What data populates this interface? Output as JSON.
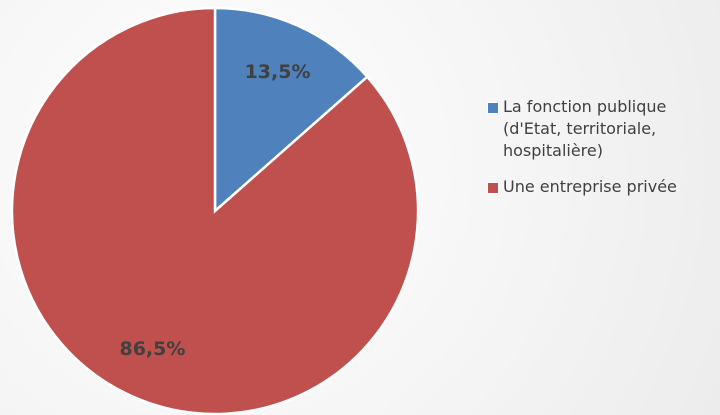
{
  "chart_data": {
    "type": "pie",
    "categories": [
      "La fonction publique (d'Etat, territoriale, hospitalière)",
      "Une entreprise privée"
    ],
    "values": [
      13.5,
      86.5
    ],
    "value_labels": [
      "13,5%",
      "86,5%"
    ],
    "colors": [
      "#4f81bd",
      "#c0504d"
    ],
    "legend": "right"
  }
}
